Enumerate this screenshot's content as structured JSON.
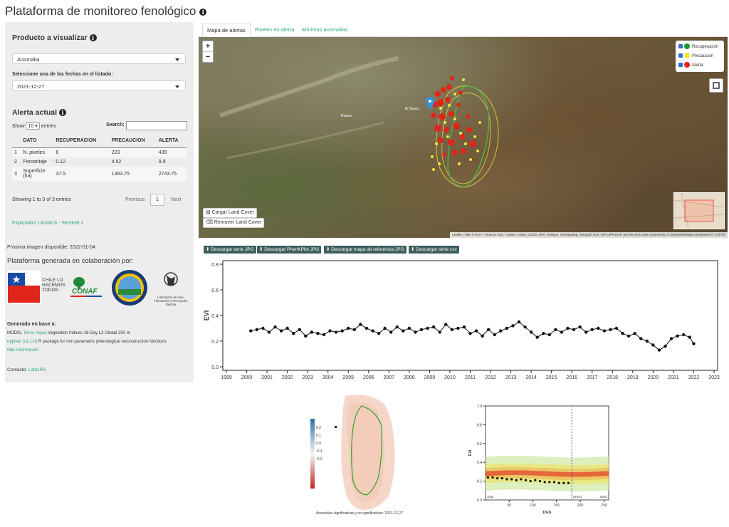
{
  "page": {
    "title": "Plataforma de monitoreo fenológico"
  },
  "sidebar": {
    "product_heading": "Producto a visualizar",
    "product_value": "Anomalia",
    "date_label": "Seleccione una de las fechas en el listado:",
    "date_value": "2021-12-27",
    "alert_heading": "Alerta actual",
    "show_label": "Show",
    "show_value": "10",
    "entries_label": "entries",
    "search_label": "Search:",
    "table": {
      "headers": [
        "",
        "DATO",
        "RECUPERACION",
        "PRECAUCION",
        "ALERTA"
      ],
      "rows": [
        [
          "1",
          "N. pixeles",
          "6",
          "223",
          "439"
        ],
        [
          "2",
          "Porcentaje",
          "0.12",
          "4.52",
          "8.9"
        ],
        [
          "3",
          "Superficie (ha)",
          "37.5",
          "1393.75",
          "2743.75"
        ]
      ]
    },
    "showing": "Showing 1 to 3 of 3 entries",
    "previous": "Previous",
    "page_num": "1",
    "next": "Next",
    "explorer_link": "Explorador Landat 8 - Sentinel 2",
    "next_image": "Próxima imagen disponible: 2022-01-04",
    "collab_heading": "Plataforma generada en colaboración por:",
    "logos": {
      "ministerio": "Ministerio de Agricultura",
      "chile": "CHILE LO HACEMOS TODOS",
      "conaf": "CONAF",
      "lab": "Laboratorio de Geo-información y Percepción Remota"
    },
    "based_heading": "Generado en base a:",
    "modis_prefix": "MODIS, ",
    "modis_link": "Terra / Aqua",
    "modis_suffix": " Vegetation Indices 16-Day L3 Global 250 m",
    "npphen_link": "npphen (v1.1-0)",
    "npphen_suffix": " R package for non-parametric phenological reconstruction functions",
    "more_info": "Más información",
    "contact_label": "Contacto: ",
    "contact_link": "LabGRS"
  },
  "tabs": [
    "Mapa de alertas",
    "Pixeles en alerta",
    "Mínimas anomalias"
  ],
  "map": {
    "zoom_in": "+",
    "zoom_out": "−",
    "legend": [
      {
        "label": "Recuperación",
        "color": "#1a9a2c"
      },
      {
        "label": "Precaución",
        "color": "#f2e93a"
      },
      {
        "label": "Alerta",
        "color": "#e0251b"
      }
    ],
    "place_labels": [
      "El Sauce",
      "Rulaco"
    ],
    "load_lc": "Cargar Land Cover",
    "remove_lc": "Remover Land Cover",
    "attribution": "Leaflet | Tiles © Esri — Source: Esri, i-cubed, USDA, USGS, AEX, GeoEye, Getmapping, Aerogrid, IGN, IGP, UPR-EGP, and the GIS User Community, © OpenStreetMap contributors © CARTO"
  },
  "downloads": [
    "Descargar serie JPG",
    "Descargar PhenKPlot JPG",
    "Descargar mapa de referencia JPG",
    "Descargar serie csv"
  ],
  "map_thumb": {
    "caption": "Anomalias significativas y no significativas: 2021-12-27",
    "colorbar_ticks": [
      "0.2",
      "0.1",
      "0.0",
      "-0.1",
      "-0.2"
    ]
  },
  "chart_data": [
    {
      "type": "line",
      "xlabel": "",
      "ylabel": "EVI",
      "xlim": [
        1999,
        2023
      ],
      "ylim": [
        0.0,
        0.8
      ],
      "x_ticks": [
        "1999",
        "2000",
        "2001",
        "2002",
        "2003",
        "2004",
        "2005",
        "2006",
        "2007",
        "2008",
        "2009",
        "2010",
        "2011",
        "2012",
        "2013",
        "2014",
        "2015",
        "2016",
        "2017",
        "2018",
        "2019",
        "2020",
        "2021",
        "2022",
        "2023"
      ],
      "y_ticks": [
        "0.0",
        "0.2",
        "0.4",
        "0.6",
        "0.8"
      ],
      "series": [
        {
          "x": [
            2000.2,
            2000.5,
            2000.8,
            2001.1,
            2001.4,
            2001.7,
            2002.0,
            2002.3,
            2002.6,
            2002.9,
            2003.2,
            2003.5,
            2003.8,
            2004.1,
            2004.4,
            2004.7,
            2005.0,
            2005.3,
            2005.6,
            2005.9,
            2006.2,
            2006.5,
            2006.8,
            2007.1,
            2007.4,
            2007.7,
            2008.0,
            2008.3,
            2008.6,
            2008.9,
            2009.2,
            2009.5,
            2009.8,
            2010.1,
            2010.4,
            2010.7,
            2011.0,
            2011.3,
            2011.6,
            2011.9,
            2012.2,
            2012.5,
            2012.8,
            2013.1,
            2013.4,
            2013.7,
            2014.0,
            2014.3,
            2014.6,
            2014.9,
            2015.2,
            2015.5,
            2015.8,
            2016.1,
            2016.4,
            2016.7,
            2017.0,
            2017.3,
            2017.6,
            2017.9,
            2018.2,
            2018.5,
            2018.8,
            2019.1,
            2019.4,
            2019.7,
            2020.0,
            2020.3,
            2020.6,
            2020.9,
            2021.2,
            2021.5,
            2021.8,
            2022.0
          ],
          "y": [
            0.28,
            0.29,
            0.3,
            0.27,
            0.31,
            0.28,
            0.3,
            0.26,
            0.29,
            0.24,
            0.27,
            0.26,
            0.25,
            0.28,
            0.27,
            0.28,
            0.3,
            0.29,
            0.33,
            0.3,
            0.28,
            0.26,
            0.3,
            0.27,
            0.31,
            0.28,
            0.3,
            0.27,
            0.29,
            0.3,
            0.31,
            0.27,
            0.33,
            0.29,
            0.3,
            0.31,
            0.26,
            0.28,
            0.24,
            0.29,
            0.25,
            0.28,
            0.3,
            0.32,
            0.35,
            0.31,
            0.27,
            0.23,
            0.26,
            0.25,
            0.29,
            0.27,
            0.3,
            0.29,
            0.31,
            0.27,
            0.29,
            0.3,
            0.28,
            0.29,
            0.3,
            0.26,
            0.24,
            0.26,
            0.22,
            0.2,
            0.17,
            0.13,
            0.16,
            0.22,
            0.24,
            0.25,
            0.23,
            0.18
          ]
        }
      ]
    },
    {
      "type": "line",
      "xlabel": "DGS",
      "ylabel": "EVI",
      "xlim": [
        0,
        260
      ],
      "ylim": [
        0.0,
        1.0
      ],
      "x_ticks": [
        "50",
        "100",
        "150",
        "200",
        "250"
      ],
      "y_ticks": [
        "0.0",
        "0.2",
        "0.4",
        "0.6",
        "0.8",
        "1.0"
      ],
      "annotations": [
        "Julio",
        "Enero",
        "Junio"
      ],
      "series": [
        {
          "x": [
            5,
            15,
            25,
            35,
            45,
            55,
            65,
            75,
            85,
            95,
            105,
            115,
            125,
            135,
            145,
            155,
            165,
            175
          ],
          "y": [
            0.24,
            0.24,
            0.23,
            0.23,
            0.22,
            0.22,
            0.21,
            0.22,
            0.21,
            0.2,
            0.21,
            0.2,
            0.19,
            0.19,
            0.19,
            0.18,
            0.18,
            0.18
          ]
        }
      ]
    }
  ]
}
